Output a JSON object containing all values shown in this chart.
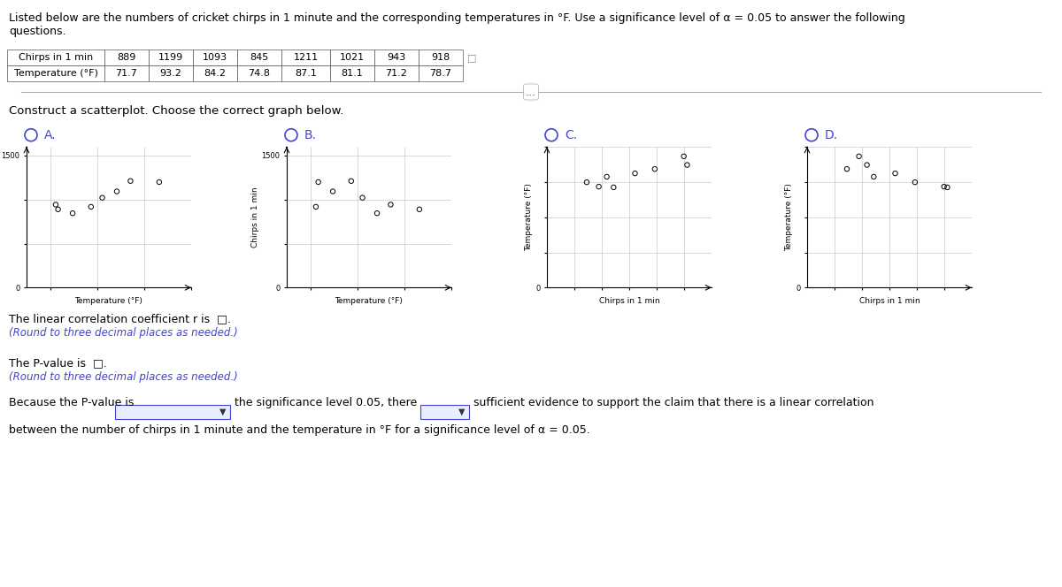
{
  "title_text": "Listed below are the numbers of cricket chirps in 1 minute and the corresponding temperatures in °F. Use a significance level of α = 0.05 to answer the following\nquestions.",
  "chirps": [
    889,
    1199,
    1093,
    845,
    1211,
    1021,
    943,
    918
  ],
  "temps": [
    71.7,
    93.2,
    84.2,
    74.8,
    87.1,
    81.1,
    71.2,
    78.7
  ],
  "bg_color": "#ffffff",
  "table_header_bg": "#ffffff",
  "graph_bg": "#ffffff",
  "grid_color": "#aaaaaa",
  "scatter_color": "#000000",
  "text_color": "#000000",
  "blue_text": "#4444cc",
  "option_labels": [
    "A.",
    "B.",
    "C.",
    "D."
  ],
  "scatter_size": 18,
  "construct_text": "Construct a scatterplot. Choose the correct graph below.",
  "corr_text": "The linear correlation coefficient r is",
  "pval_text": "The P-value is",
  "because_text1": "Because the P-value is",
  "because_text2": "the significance level 0.05, there",
  "because_text3": "sufficient evidence to support the claim that there is a linear correlation",
  "because_text4": "between the number of chirps in 1 minute and the temperature in °F for a significance level of α = 0.05.",
  "round_note": "(Round to three decimal places as needed.)"
}
